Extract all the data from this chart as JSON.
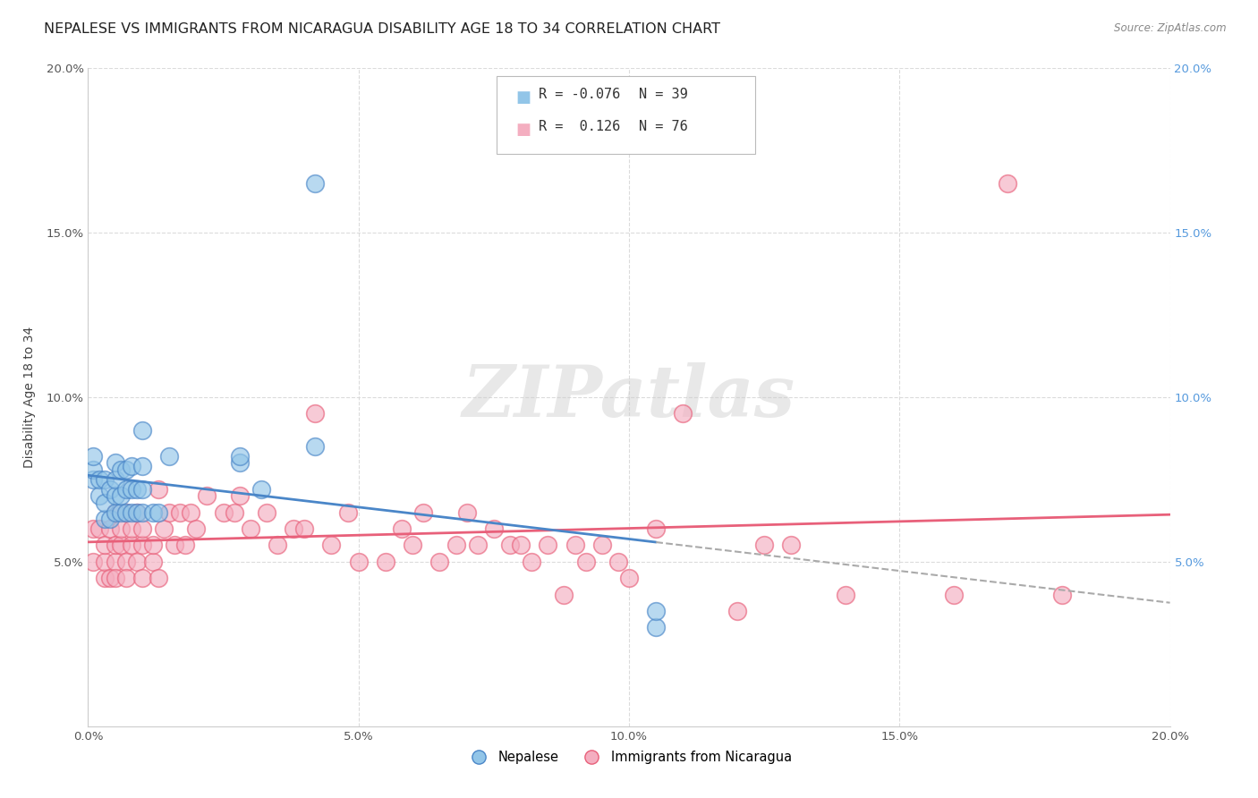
{
  "title": "NEPALESE VS IMMIGRANTS FROM NICARAGUA DISABILITY AGE 18 TO 34 CORRELATION CHART",
  "source": "Source: ZipAtlas.com",
  "ylabel": "Disability Age 18 to 34",
  "xlim": [
    0.0,
    0.2
  ],
  "ylim": [
    0.0,
    0.2
  ],
  "xticks": [
    0.0,
    0.05,
    0.1,
    0.15,
    0.2
  ],
  "yticks": [
    0.05,
    0.1,
    0.15,
    0.2
  ],
  "xticklabels": [
    "0.0%",
    "5.0%",
    "10.0%",
    "15.0%",
    "20.0%"
  ],
  "yticklabels": [
    "5.0%",
    "10.0%",
    "15.0%",
    "20.0%"
  ],
  "right_yticklabels": [
    "5.0%",
    "10.0%",
    "15.0%",
    "20.0%"
  ],
  "right_yticks": [
    0.05,
    0.1,
    0.15,
    0.2
  ],
  "blue_color": "#92c5e8",
  "pink_color": "#f4aec0",
  "blue_line_color": "#4a86c8",
  "pink_line_color": "#e8607a",
  "legend_r_blue": "-0.076",
  "legend_n_blue": "39",
  "legend_r_pink": "0.126",
  "legend_n_pink": "76",
  "blue_scatter_x": [
    0.001,
    0.001,
    0.001,
    0.002,
    0.002,
    0.003,
    0.003,
    0.003,
    0.004,
    0.004,
    0.005,
    0.005,
    0.005,
    0.005,
    0.006,
    0.006,
    0.006,
    0.007,
    0.007,
    0.007,
    0.008,
    0.008,
    0.008,
    0.009,
    0.009,
    0.01,
    0.01,
    0.01,
    0.01,
    0.012,
    0.013,
    0.015,
    0.028,
    0.028,
    0.032,
    0.042,
    0.042,
    0.105,
    0.105
  ],
  "blue_scatter_y": [
    0.075,
    0.078,
    0.082,
    0.07,
    0.075,
    0.063,
    0.068,
    0.075,
    0.063,
    0.072,
    0.065,
    0.07,
    0.075,
    0.08,
    0.065,
    0.07,
    0.078,
    0.065,
    0.072,
    0.078,
    0.065,
    0.072,
    0.079,
    0.065,
    0.072,
    0.065,
    0.072,
    0.079,
    0.09,
    0.065,
    0.065,
    0.082,
    0.08,
    0.082,
    0.072,
    0.165,
    0.085,
    0.03,
    0.035
  ],
  "pink_scatter_x": [
    0.001,
    0.001,
    0.002,
    0.003,
    0.003,
    0.003,
    0.004,
    0.004,
    0.005,
    0.005,
    0.005,
    0.005,
    0.006,
    0.006,
    0.007,
    0.007,
    0.007,
    0.008,
    0.008,
    0.009,
    0.009,
    0.01,
    0.01,
    0.01,
    0.012,
    0.012,
    0.013,
    0.013,
    0.014,
    0.015,
    0.016,
    0.017,
    0.018,
    0.019,
    0.02,
    0.022,
    0.025,
    0.027,
    0.028,
    0.03,
    0.033,
    0.035,
    0.038,
    0.04,
    0.042,
    0.045,
    0.048,
    0.05,
    0.055,
    0.058,
    0.06,
    0.062,
    0.065,
    0.068,
    0.07,
    0.072,
    0.075,
    0.078,
    0.08,
    0.082,
    0.085,
    0.088,
    0.09,
    0.092,
    0.095,
    0.098,
    0.1,
    0.105,
    0.11,
    0.12,
    0.125,
    0.13,
    0.14,
    0.16,
    0.17,
    0.18
  ],
  "pink_scatter_y": [
    0.06,
    0.05,
    0.06,
    0.045,
    0.05,
    0.055,
    0.045,
    0.06,
    0.05,
    0.055,
    0.045,
    0.065,
    0.055,
    0.06,
    0.05,
    0.045,
    0.065,
    0.055,
    0.06,
    0.05,
    0.065,
    0.045,
    0.055,
    0.06,
    0.05,
    0.055,
    0.045,
    0.072,
    0.06,
    0.065,
    0.055,
    0.065,
    0.055,
    0.065,
    0.06,
    0.07,
    0.065,
    0.065,
    0.07,
    0.06,
    0.065,
    0.055,
    0.06,
    0.06,
    0.095,
    0.055,
    0.065,
    0.05,
    0.05,
    0.06,
    0.055,
    0.065,
    0.05,
    0.055,
    0.065,
    0.055,
    0.06,
    0.055,
    0.055,
    0.05,
    0.055,
    0.04,
    0.055,
    0.05,
    0.055,
    0.05,
    0.045,
    0.06,
    0.095,
    0.035,
    0.055,
    0.055,
    0.04,
    0.04,
    0.165,
    0.04
  ],
  "background_color": "#ffffff",
  "grid_color": "#d8d8d8",
  "watermark_text": "ZIPatlas",
  "title_fontsize": 11.5,
  "axis_label_fontsize": 10,
  "tick_fontsize": 9.5,
  "legend_fontsize": 11
}
